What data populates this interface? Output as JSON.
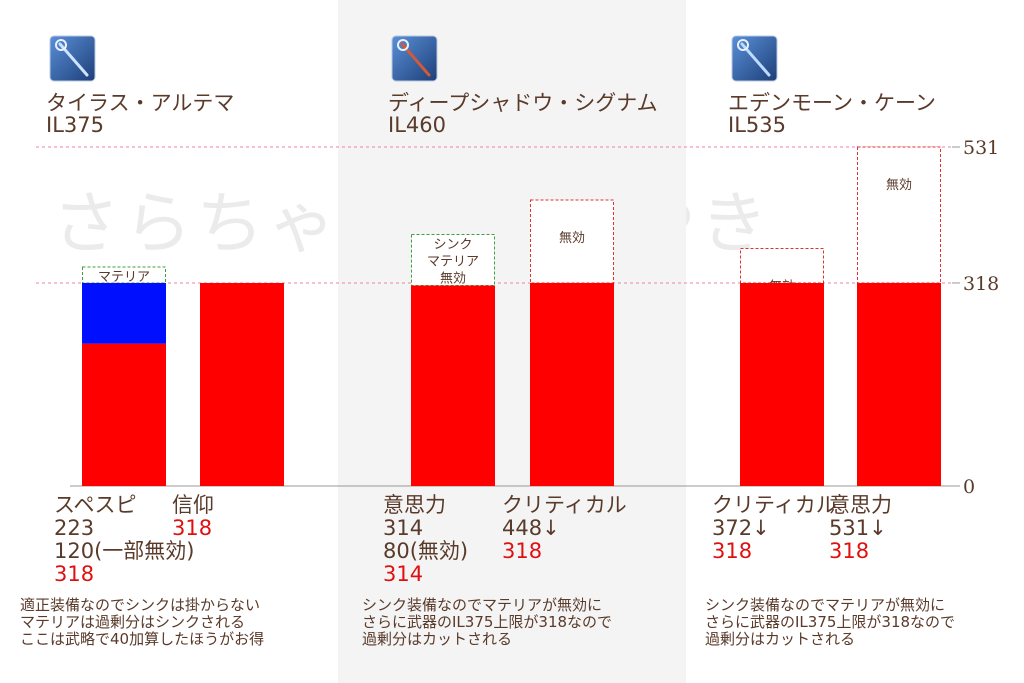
{
  "watermark": "さらちゃんのつぶやき",
  "colors": {
    "red": "#ff0000",
    "blue": "#0010ff",
    "text": "#5a3a2a",
    "accent_text": "#e01010",
    "guide": "#f080b0",
    "panel_bg": "#f4f4f4"
  },
  "chart_data": {
    "type": "bar",
    "ylim": [
      0,
      531
    ],
    "yticks": [
      "0",
      "318",
      "531"
    ],
    "groups": [
      {
        "weapon_name": "タイラス・アルテマ",
        "item_level": "IL375",
        "icon": "tyrus-ultima-staff-icon",
        "note": [
          "適正装備なのでシンクは掛からない",
          "マテリアは過剰分はシンクされる",
          "ここは武略で40加算したほうがお得"
        ],
        "bars": [
          {
            "stat": "スペスピ",
            "base": 223,
            "materia": 120,
            "effective": 318,
            "invalid_label": "マテリア\n一部無効",
            "invalid_top": 343,
            "lines": [
              "223",
              "120(一部無効)"
            ],
            "result": "318"
          },
          {
            "stat": "信仰",
            "base": 318,
            "effective": 318,
            "lines": [],
            "result": "318"
          }
        ]
      },
      {
        "weapon_name": "ディープシャドウ・シグナム",
        "item_level": "IL460",
        "icon": "deep-shadow-signum-staff-icon",
        "note": [
          "シンク装備なのでマテリアが無効に",
          "さらに武器のIL375上限が318なので",
          "過剰分はカットされる"
        ],
        "bars": [
          {
            "stat": "意思力",
            "base": 314,
            "effective": 314,
            "invalid_label": "シンク\nマテリア\n無効",
            "invalid_top": 394,
            "lines": [
              "314",
              "80(無効)"
            ],
            "result": "314"
          },
          {
            "stat": "クリティカル",
            "base": 318,
            "effective": 318,
            "invalid_label": "無効",
            "invalid_top": 448,
            "lines": [
              "448↓"
            ],
            "result": "318"
          }
        ]
      },
      {
        "weapon_name": "エデンモーン・ケーン",
        "item_level": "IL535",
        "icon": "edenmorn-cane-staff-icon",
        "note": [
          "シンク装備なのでマテリアが無効に",
          "さらに武器のIL375上限が318なので",
          "過剰分はカットされる"
        ],
        "bars": [
          {
            "stat": "クリティカル",
            "base": 318,
            "effective": 318,
            "invalid_label": "無効",
            "invalid_top": 372,
            "lines": [
              "372↓"
            ],
            "result": "318"
          },
          {
            "stat": "意思力",
            "base": 318,
            "effective": 318,
            "invalid_label": "無効",
            "invalid_top": 531,
            "lines": [
              "531↓"
            ],
            "result": "318"
          }
        ]
      }
    ]
  }
}
